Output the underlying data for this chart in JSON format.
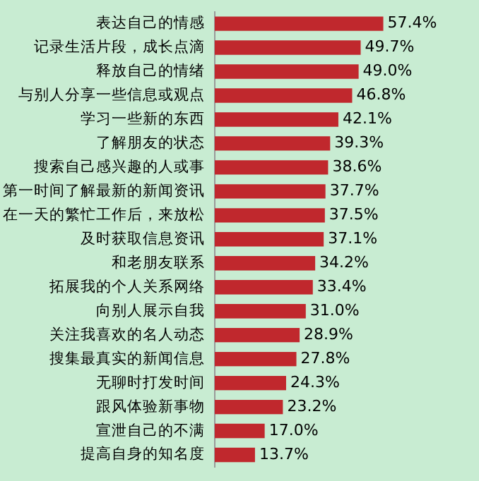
{
  "chart_data": {
    "type": "bar",
    "orientation": "horizontal",
    "categories": [
      "表达自己的情感",
      "记录生活片段，成长点滴",
      "释放自己的情绪",
      "与别人分享一些信息或观点",
      "学习一些新的东西",
      "了解朋友的状态",
      "搜索自己感兴趣的人或事",
      "第一时间了解最新的新闻资讯",
      "在一天的繁忙工作后，来放松",
      "及时获取信息资讯",
      "和老朋友联系",
      "拓展我的个人关系网络",
      "向别人展示自我",
      "关注我喜欢的名人动态",
      "搜集最真实的新闻信息",
      "无聊时打发时间",
      "跟风体验新事物",
      "宣泄自己的不满",
      "提高自身的知名度"
    ],
    "values": [
      57.4,
      49.7,
      49.0,
      46.8,
      42.1,
      39.3,
      38.6,
      37.7,
      37.5,
      37.1,
      34.2,
      33.4,
      31.0,
      28.9,
      27.8,
      24.3,
      23.2,
      17.0,
      13.7
    ],
    "value_labels": [
      "57.4%",
      "49.7%",
      "49.0%",
      "46.8%",
      "42.1%",
      "39.3%",
      "38.6%",
      "37.7%",
      "37.5%",
      "37.1%",
      "34.2%",
      "33.4%",
      "31.0%",
      "28.9%",
      "27.8%",
      "24.3%",
      "23.2%",
      "17.0%",
      "13.7%"
    ],
    "color": "#c0282d",
    "xlim": [
      0,
      90
    ],
    "tick_labels": "y",
    "legend": false
  }
}
